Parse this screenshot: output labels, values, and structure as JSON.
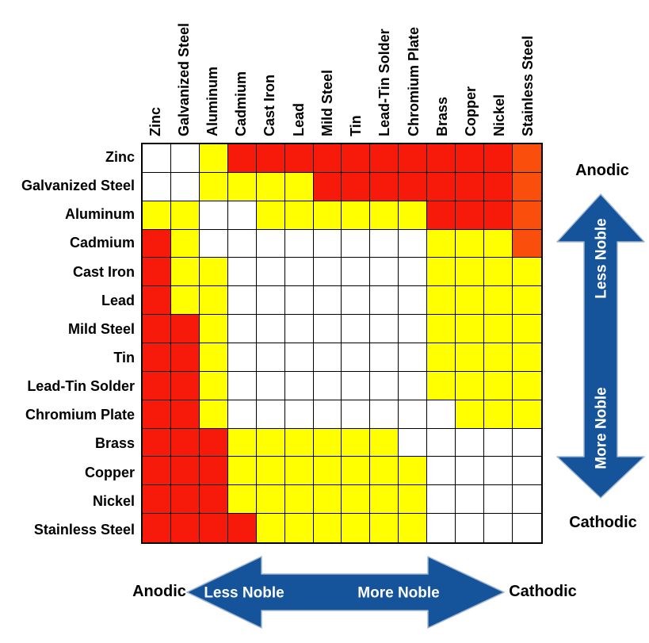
{
  "chart_data": {
    "type": "heatmap",
    "rows": [
      "Zinc",
      "Galvanized Steel",
      "Aluminum",
      "Cadmium",
      "Cast Iron",
      "Lead",
      "Mild Steel",
      "Tin",
      "Lead-Tin Solder",
      "Chromium Plate",
      "Brass",
      "Copper",
      "Nickel",
      "Stainless Steel"
    ],
    "cols": [
      "Zinc",
      "Galvanized Steel",
      "Aluminum",
      "Cadmium",
      "Cast Iron",
      "Lead",
      "Mild Steel",
      "Tin",
      "Lead-Tin Solder",
      "Chromium Plate",
      "Brass",
      "Copper",
      "Nickel",
      "Stainless Steel"
    ],
    "cells": [
      "WWYRRRRRRRRRRO",
      "WWYYYYRRRRRRRO",
      "YYWWYYYYYYRRRO",
      "RYWWWWWWWWYYYO",
      "RYYWWWWWWWYYYY",
      "RYYWWWWWWWYYYY",
      "RRYWWWWWWWYYYY",
      "RRYWWWWWWWYYYY",
      "RRYWWWWWWWYYYY",
      "RRYWWWWWWWWYYY",
      "RRRYYYYYYWWWWW",
      "RRRYYYYYYYWWWW",
      "RRRYYYYYYYWWWW",
      "RRRRYYYYYYWWWW"
    ],
    "color_key": {
      "W": "#ffffff",
      "Y": "#ffff00",
      "R": "#f7190a",
      "O": "#fa4e0c"
    },
    "legend_position": "none",
    "grid": true
  },
  "labels": {
    "anodic_top": "Anodic",
    "cathodic_right": "Cathodic",
    "anodic_bottom": "Anodic",
    "cathodic_bottom": "Cathodic",
    "less_noble_vertical": "Less Noble",
    "more_noble_vertical": "More Noble",
    "less_noble_horizontal": "Less Noble",
    "more_noble_horizontal": "More Noble"
  },
  "colors": {
    "arrow_blue": "#15549b",
    "arrow_edge": "#9fb5d2",
    "grid_line": "#000000",
    "background": "#ffffff",
    "label_text": "#000000",
    "arrow_text": "#ffffff"
  }
}
